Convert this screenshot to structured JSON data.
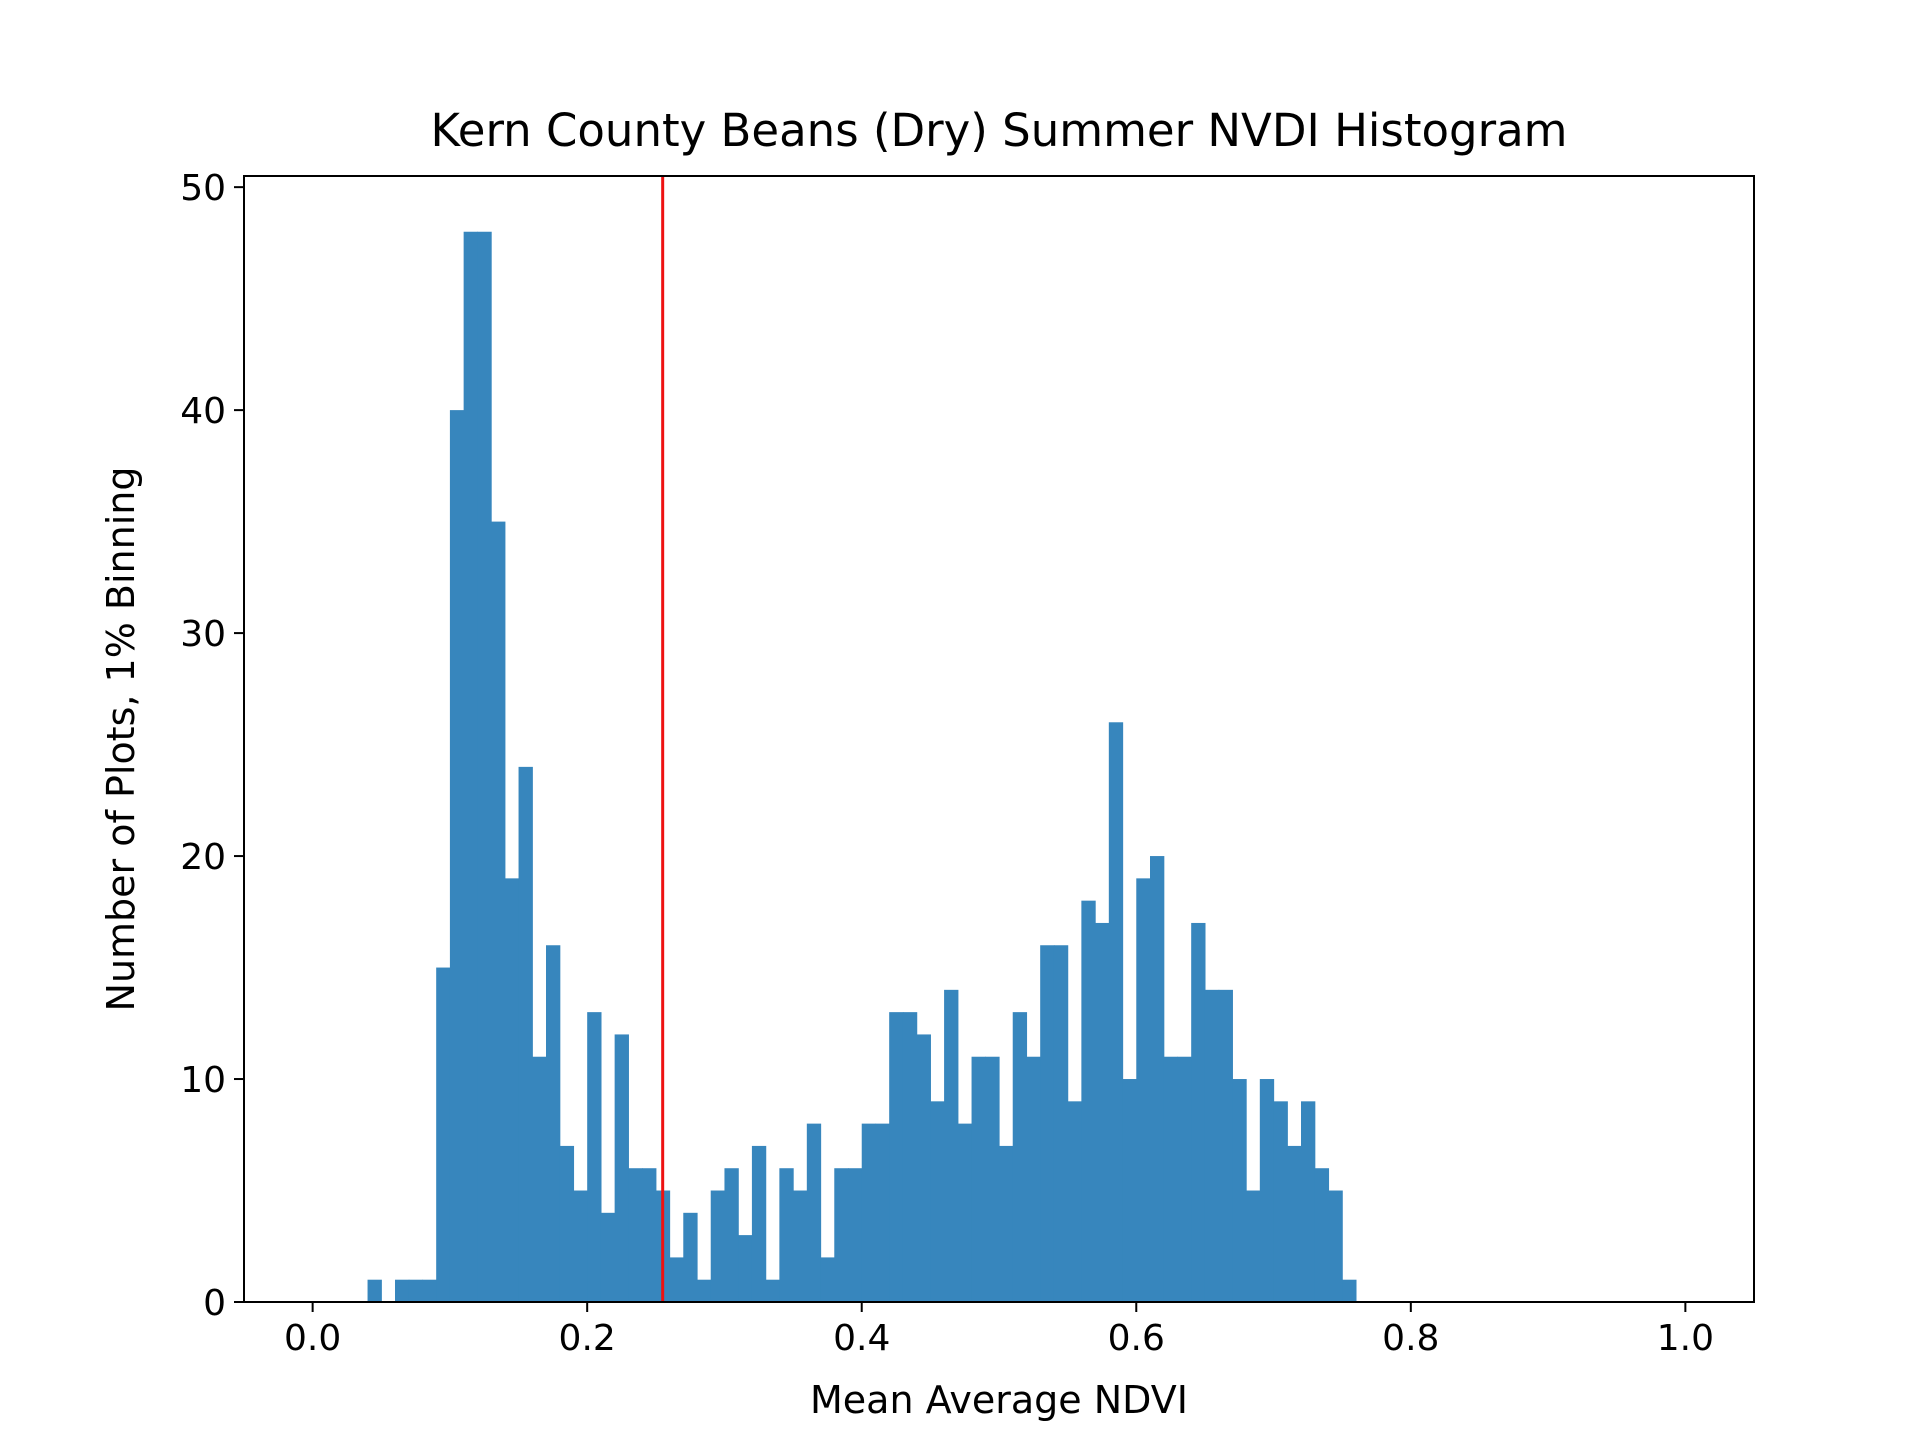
{
  "chart_data": {
    "type": "bar",
    "title": "Kern County Beans (Dry) Summer NVDI Histogram",
    "xlabel": "Mean Average NDVI",
    "ylabel": "Number of Plots, 1% Binning",
    "xlim": [
      -0.05,
      1.05
    ],
    "ylim": [
      0,
      50.5
    ],
    "xticks": [
      "0.0",
      "0.2",
      "0.4",
      "0.6",
      "0.8",
      "1.0"
    ],
    "yticks": [
      "0",
      "10",
      "20",
      "30",
      "40",
      "50"
    ],
    "bin_width": 0.01,
    "bin_start": 0.0,
    "counts": [
      0,
      0,
      0,
      0,
      1,
      0,
      1,
      1,
      1,
      15,
      40,
      48,
      48,
      35,
      19,
      24,
      11,
      16,
      7,
      5,
      13,
      4,
      12,
      6,
      6,
      5,
      2,
      4,
      1,
      5,
      6,
      3,
      7,
      1,
      6,
      5,
      8,
      2,
      6,
      6,
      8,
      8,
      13,
      13,
      12,
      9,
      14,
      8,
      11,
      11,
      7,
      13,
      11,
      16,
      16,
      9,
      18,
      17,
      26,
      10,
      19,
      20,
      11,
      11,
      17,
      14,
      14,
      10,
      5,
      10,
      9,
      7,
      9,
      6,
      5,
      1,
      0,
      0,
      0,
      0,
      0,
      0,
      0,
      0,
      0,
      0,
      0,
      0,
      0,
      0,
      0,
      0,
      0,
      0,
      0,
      0,
      0,
      0,
      0,
      0
    ],
    "vline": {
      "x": 0.255,
      "color": "#ee1111"
    },
    "bar_color": "#3786bd",
    "grid": false,
    "legend": "none"
  }
}
